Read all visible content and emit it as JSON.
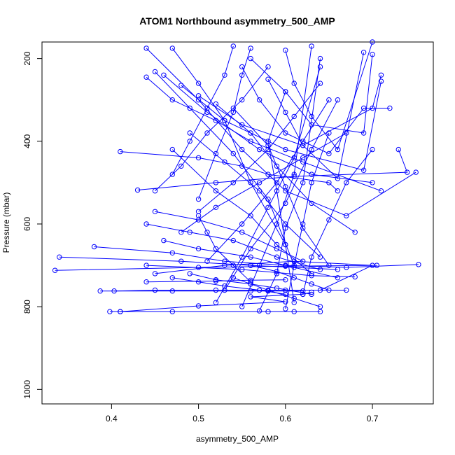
{
  "chart_data": {
    "type": "line",
    "title": "ATOM1 Northbound asymmetry_500_AMP",
    "xlabel": "asymmetry_500_AMP",
    "ylabel": "Pressure (mbar)",
    "xlim": [
      0.32,
      0.77
    ],
    "ylim": [
      1035,
      160
    ],
    "y_reversed": true,
    "x_ticks": [
      0.4,
      0.5,
      0.6,
      0.7
    ],
    "x_tick_labels": [
      "0.4",
      "0.5",
      "0.6",
      "0.7"
    ],
    "y_ticks": [
      200,
      400,
      600,
      800,
      1000
    ],
    "y_tick_labels": [
      "200",
      "400",
      "600",
      "800",
      "1000"
    ],
    "grid": false,
    "legend": "none",
    "line_color": "#0000ff",
    "marker": "open-circle",
    "series": [
      {
        "x": [
          0.398,
          0.47,
          0.41,
          0.64,
          0.58,
          0.61
        ],
        "y": [
          812,
          812,
          812,
          812,
          812,
          812
        ]
      },
      {
        "x": [
          0.41,
          0.5,
          0.6,
          0.56,
          0.62,
          0.63
        ],
        "y": [
          812,
          798,
          788,
          776,
          770,
          765
        ]
      },
      {
        "x": [
          0.387,
          0.56,
          0.62,
          0.47,
          0.58
        ],
        "y": [
          762,
          762,
          762,
          762,
          762
        ]
      },
      {
        "x": [
          0.403,
          0.45,
          0.52,
          0.6,
          0.67
        ],
        "y": [
          762,
          760,
          760,
          760,
          760
        ]
      },
      {
        "x": [
          0.335,
          0.5,
          0.6,
          0.705
        ],
        "y": [
          712,
          705,
          702,
          700
        ]
      },
      {
        "x": [
          0.34,
          0.48,
          0.56,
          0.61,
          0.66
        ],
        "y": [
          680,
          690,
          700,
          705,
          710
        ]
      },
      {
        "x": [
          0.38,
          0.47,
          0.53,
          0.6,
          0.67,
          0.753
        ],
        "y": [
          655,
          670,
          690,
          700,
          705,
          698
        ]
      },
      {
        "x": [
          0.44,
          0.55,
          0.63,
          0.68
        ],
        "y": [
          700,
          710,
          725,
          728
        ]
      },
      {
        "x": [
          0.45,
          0.53,
          0.61,
          0.7,
          0.64
        ],
        "y": [
          720,
          700,
          690,
          700,
          760
        ]
      },
      {
        "x": [
          0.44,
          0.52,
          0.56,
          0.6
        ],
        "y": [
          740,
          738,
          736,
          735
        ]
      },
      {
        "x": [
          0.41,
          0.5,
          0.55,
          0.58,
          0.65,
          0.66
        ],
        "y": [
          425,
          440,
          460,
          480,
          500,
          520
        ]
      },
      {
        "x": [
          0.43,
          0.52,
          0.61,
          0.74,
          0.73
        ],
        "y": [
          518,
          500,
          485,
          475,
          420
        ]
      },
      {
        "x": [
          0.44,
          0.5,
          0.55,
          0.6,
          0.67,
          0.75
        ],
        "y": [
          175,
          300,
          420,
          520,
          580,
          475
        ]
      },
      {
        "x": [
          0.47,
          0.5,
          0.53,
          0.56,
          0.6
        ],
        "y": [
          175,
          260,
          350,
          500,
          650
        ]
      },
      {
        "x": [
          0.44,
          0.47,
          0.52,
          0.56,
          0.62,
          0.71
        ],
        "y": [
          245,
          300,
          350,
          400,
          450,
          520
        ]
      },
      {
        "x": [
          0.45,
          0.49,
          0.54,
          0.58,
          0.61
        ],
        "y": [
          232,
          320,
          430,
          540,
          700
        ]
      },
      {
        "x": [
          0.46,
          0.51,
          0.57,
          0.63,
          0.7
        ],
        "y": [
          240,
          330,
          420,
          480,
          500
        ]
      },
      {
        "x": [
          0.48,
          0.53,
          0.6,
          0.69,
          0.71
        ],
        "y": [
          265,
          350,
          420,
          470,
          255
        ]
      },
      {
        "x": [
          0.5,
          0.55,
          0.62,
          0.7,
          0.71
        ],
        "y": [
          290,
          360,
          410,
          320,
          240
        ]
      },
      {
        "x": [
          0.52,
          0.56,
          0.59,
          0.63,
          0.68
        ],
        "y": [
          310,
          380,
          460,
          550,
          620
        ]
      },
      {
        "x": [
          0.54,
          0.58,
          0.6,
          0.62,
          0.65
        ],
        "y": [
          320,
          410,
          510,
          610,
          700
        ]
      },
      {
        "x": [
          0.55,
          0.57,
          0.6,
          0.65,
          0.69,
          0.72
        ],
        "y": [
          220,
          300,
          380,
          430,
          320,
          320
        ]
      },
      {
        "x": [
          0.56,
          0.6,
          0.63,
          0.69,
          0.7
        ],
        "y": [
          200,
          280,
          360,
          380,
          190
        ]
      },
      {
        "x": [
          0.58,
          0.6,
          0.62,
          0.66,
          0.69
        ],
        "y": [
          250,
          330,
          410,
          490,
          185
        ]
      },
      {
        "x": [
          0.6,
          0.61,
          0.63,
          0.66,
          0.7
        ],
        "y": [
          180,
          260,
          340,
          420,
          160
        ]
      },
      {
        "x": [
          0.49,
          0.53,
          0.57,
          0.6,
          0.64
        ],
        "y": [
          380,
          450,
          520,
          600,
          680
        ]
      },
      {
        "x": [
          0.47,
          0.52,
          0.56,
          0.59,
          0.63
        ],
        "y": [
          420,
          520,
          580,
          650,
          720
        ]
      },
      {
        "x": [
          0.45,
          0.5,
          0.55,
          0.59,
          0.62
        ],
        "y": [
          570,
          590,
          620,
          660,
          690
        ]
      },
      {
        "x": [
          0.44,
          0.49,
          0.54,
          0.59,
          0.64
        ],
        "y": [
          600,
          620,
          640,
          680,
          710
        ]
      },
      {
        "x": [
          0.46,
          0.5,
          0.56,
          0.6,
          0.66
        ],
        "y": [
          640,
          660,
          680,
          700,
          730
        ]
      },
      {
        "x": [
          0.48,
          0.52,
          0.57,
          0.62,
          0.67
        ],
        "y": [
          620,
          560,
          500,
          440,
          380
        ]
      },
      {
        "x": [
          0.5,
          0.54,
          0.58,
          0.61,
          0.64
        ],
        "y": [
          570,
          500,
          420,
          340,
          260
        ]
      },
      {
        "x": [
          0.51,
          0.55,
          0.59,
          0.62,
          0.65
        ],
        "y": [
          690,
          600,
          500,
          400,
          300
        ]
      },
      {
        "x": [
          0.53,
          0.56,
          0.6,
          0.63,
          0.66
        ],
        "y": [
          760,
          660,
          550,
          420,
          300
        ]
      },
      {
        "x": [
          0.52,
          0.55,
          0.58,
          0.61,
          0.64
        ],
        "y": [
          790,
          680,
          560,
          440,
          220
        ]
      },
      {
        "x": [
          0.55,
          0.57,
          0.59,
          0.61,
          0.63
        ],
        "y": [
          800,
          700,
          600,
          480,
          170
        ]
      },
      {
        "x": [
          0.57,
          0.59,
          0.6,
          0.62,
          0.64
        ],
        "y": [
          810,
          720,
          610,
          500,
          200
        ]
      },
      {
        "x": [
          0.6,
          0.61,
          0.62,
          0.63,
          0.65
        ],
        "y": [
          805,
          700,
          600,
          500,
          380
        ]
      },
      {
        "x": [
          0.62,
          0.63,
          0.65,
          0.67,
          0.7
        ],
        "y": [
          770,
          680,
          590,
          500,
          420
        ]
      },
      {
        "x": [
          0.61,
          0.6,
          0.59,
          0.58,
          0.6
        ],
        "y": [
          790,
          650,
          520,
          400,
          280
        ]
      },
      {
        "x": [
          0.5,
          0.52,
          0.54,
          0.55,
          0.56
        ],
        "y": [
          540,
          430,
          330,
          240,
          175
        ]
      },
      {
        "x": [
          0.47,
          0.49,
          0.51,
          0.53,
          0.54
        ],
        "y": [
          480,
          400,
          320,
          240,
          170
        ]
      },
      {
        "x": [
          0.45,
          0.48,
          0.51,
          0.55,
          0.58
        ],
        "y": [
          520,
          460,
          380,
          300,
          220
        ]
      },
      {
        "x": [
          0.5,
          0.51,
          0.52,
          0.54,
          0.56
        ],
        "y": [
          580,
          620,
          660,
          700,
          740
        ]
      },
      {
        "x": [
          0.47,
          0.5,
          0.53,
          0.57,
          0.6
        ],
        "y": [
          730,
          740,
          750,
          760,
          770
        ]
      },
      {
        "x": [
          0.49,
          0.52,
          0.56,
          0.59,
          0.63
        ],
        "y": [
          720,
          735,
          745,
          755,
          770
        ]
      },
      {
        "x": [
          0.54,
          0.56,
          0.58,
          0.61,
          0.64
        ],
        "y": [
          730,
          745,
          760,
          780,
          800
        ]
      },
      {
        "x": [
          0.56,
          0.59,
          0.61,
          0.63,
          0.65
        ],
        "y": [
          700,
          715,
          730,
          745,
          760
        ]
      }
    ]
  }
}
